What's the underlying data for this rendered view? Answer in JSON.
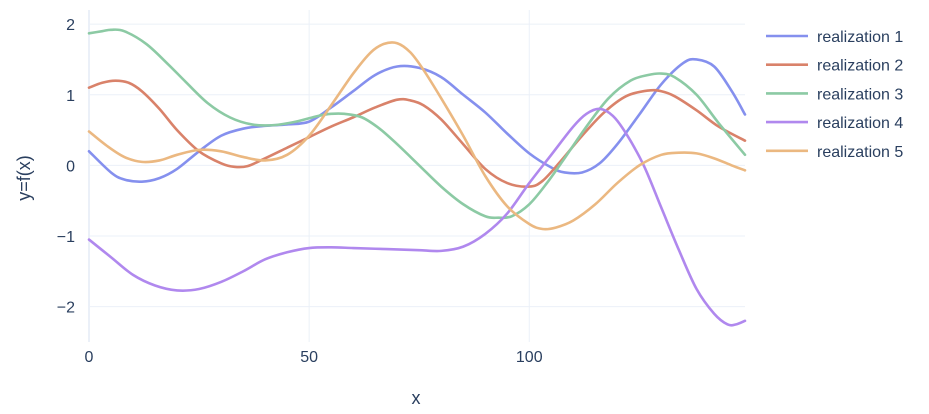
{
  "chart_data": {
    "type": "line",
    "xlabel": "x",
    "ylabel": "y=f(x)",
    "xlim": [
      0,
      149
    ],
    "ylim": [
      -2.5,
      2.2
    ],
    "x_ticks": [
      0,
      50,
      100
    ],
    "y_ticks": [
      2,
      1,
      0,
      -1,
      -2
    ],
    "y_tick_labels": [
      "2",
      "1",
      "0",
      "−1",
      "−2"
    ],
    "grid": true,
    "legend_position": "right",
    "series": [
      {
        "name": "realization 1",
        "color": "#8590ee",
        "x": [
          0,
          5,
          8,
          12,
          16,
          20,
          25,
          30,
          35,
          40,
          45,
          50,
          55,
          60,
          65,
          70,
          75,
          80,
          85,
          90,
          95,
          100,
          105,
          108,
          112,
          116,
          120,
          125,
          130,
          135,
          138,
          142,
          146,
          149
        ],
        "y": [
          0.2,
          -0.1,
          -0.2,
          -0.23,
          -0.18,
          -0.05,
          0.2,
          0.42,
          0.52,
          0.56,
          0.58,
          0.62,
          0.82,
          1.05,
          1.28,
          1.4,
          1.38,
          1.25,
          1.0,
          0.75,
          0.45,
          0.17,
          -0.03,
          -0.1,
          -0.1,
          0.03,
          0.3,
          0.72,
          1.15,
          1.45,
          1.5,
          1.4,
          1.05,
          0.72
        ]
      },
      {
        "name": "realization 2",
        "color": "#d9826a",
        "x": [
          0,
          3,
          6,
          9,
          12,
          16,
          20,
          25,
          30,
          33,
          36,
          40,
          45,
          50,
          55,
          60,
          65,
          70,
          73,
          76,
          80,
          85,
          90,
          95,
          100,
          103,
          107,
          112,
          117,
          122,
          127,
          130,
          133,
          138,
          143,
          149
        ],
        "y": [
          1.1,
          1.17,
          1.2,
          1.17,
          1.05,
          0.8,
          0.5,
          0.2,
          0.03,
          -0.02,
          -0.01,
          0.1,
          0.25,
          0.4,
          0.55,
          0.68,
          0.82,
          0.93,
          0.92,
          0.85,
          0.65,
          0.3,
          -0.05,
          -0.25,
          -0.3,
          -0.22,
          0.05,
          0.42,
          0.75,
          0.98,
          1.06,
          1.05,
          0.98,
          0.78,
          0.55,
          0.35
        ]
      },
      {
        "name": "realization 3",
        "color": "#8ccaa4",
        "x": [
          0,
          3,
          5,
          8,
          13,
          18,
          22,
          27,
          32,
          37,
          42,
          47,
          52,
          55,
          58,
          62,
          66,
          70,
          75,
          80,
          85,
          90,
          93,
          96,
          100,
          104,
          108,
          113,
          118,
          123,
          127,
          130,
          133,
          138,
          143,
          149
        ],
        "y": [
          1.87,
          1.9,
          1.92,
          1.9,
          1.72,
          1.43,
          1.18,
          0.88,
          0.68,
          0.58,
          0.57,
          0.62,
          0.7,
          0.73,
          0.73,
          0.68,
          0.52,
          0.3,
          0.0,
          -0.3,
          -0.55,
          -0.72,
          -0.74,
          -0.72,
          -0.55,
          -0.25,
          0.1,
          0.55,
          0.95,
          1.2,
          1.28,
          1.3,
          1.25,
          1.0,
          0.6,
          0.15
        ]
      },
      {
        "name": "realization 4",
        "color": "#b088ee",
        "x": [
          0,
          5,
          10,
          15,
          20,
          25,
          30,
          35,
          40,
          45,
          50,
          55,
          60,
          65,
          70,
          75,
          80,
          85,
          90,
          95,
          100,
          105,
          110,
          113,
          116,
          119,
          122,
          126,
          130,
          134,
          138,
          142,
          145,
          147,
          149
        ],
        "y": [
          -1.05,
          -1.3,
          -1.55,
          -1.7,
          -1.77,
          -1.75,
          -1.65,
          -1.5,
          -1.33,
          -1.23,
          -1.17,
          -1.16,
          -1.17,
          -1.18,
          -1.19,
          -1.2,
          -1.21,
          -1.15,
          -0.97,
          -0.68,
          -0.25,
          0.15,
          0.55,
          0.73,
          0.8,
          0.7,
          0.45,
          0.0,
          -0.6,
          -1.2,
          -1.75,
          -2.1,
          -2.25,
          -2.25,
          -2.2
        ]
      },
      {
        "name": "realization 5",
        "color": "#ebb881",
        "x": [
          0,
          4,
          8,
          12,
          16,
          20,
          25,
          30,
          35,
          40,
          45,
          50,
          55,
          60,
          64,
          67,
          70,
          73,
          76,
          80,
          85,
          90,
          95,
          100,
          103,
          106,
          110,
          115,
          120,
          125,
          130,
          134,
          138,
          142,
          146,
          149
        ],
        "y": [
          0.48,
          0.28,
          0.12,
          0.05,
          0.07,
          0.15,
          0.22,
          0.2,
          0.12,
          0.07,
          0.15,
          0.42,
          0.85,
          1.3,
          1.6,
          1.72,
          1.73,
          1.6,
          1.35,
          0.95,
          0.42,
          -0.15,
          -0.58,
          -0.83,
          -0.9,
          -0.88,
          -0.78,
          -0.55,
          -0.25,
          0.0,
          0.15,
          0.18,
          0.17,
          0.1,
          0.0,
          -0.07
        ]
      }
    ]
  }
}
